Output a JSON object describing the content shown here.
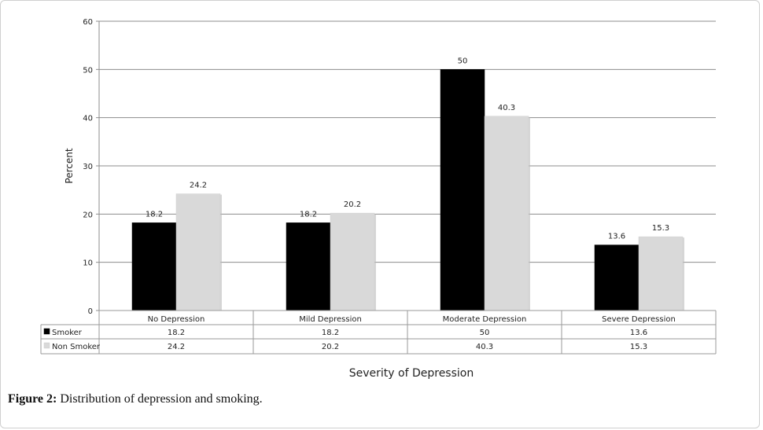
{
  "chart_data": {
    "type": "bar",
    "categories": [
      "No Depression",
      "Mild Depression",
      "Moderate Depression",
      "Severe Depression"
    ],
    "series": [
      {
        "name": "Smoker",
        "values": [
          18.2,
          18.2,
          50,
          13.6
        ],
        "color": "#000000"
      },
      {
        "name": "Non Smoker",
        "values": [
          24.2,
          20.2,
          40.3,
          15.3
        ],
        "color": "#d9d9d9"
      }
    ],
    "data_labels": [
      [
        "18.2",
        "18.2",
        "50",
        "13.6"
      ],
      [
        "24.2",
        "20.2",
        "40.3",
        "15.3"
      ]
    ],
    "ylabel": "Percent",
    "xlabel": "Severity of Depression",
    "ylim": [
      0,
      60
    ],
    "yticks": [
      "0",
      "10",
      "20",
      "30",
      "40",
      "50",
      "60"
    ],
    "grid": true,
    "legend": "data-table"
  },
  "caption": {
    "label": "Figure 2:",
    "text": " Distribution of depression and smoking."
  }
}
